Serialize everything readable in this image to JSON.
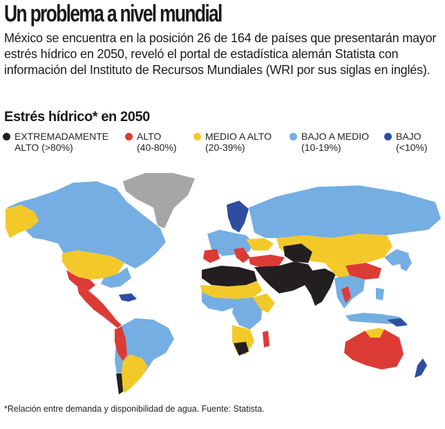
{
  "headline": "Un problema a nivel mundial",
  "lede": "México se encuentra en la posición 26 de 164 de países que presentarán mayor estrés hídrico en 2050, reveló el portal de estadística alemán Statista con información del Instituto de Recursos Mundiales (WRI por sus siglas en inglés).",
  "map_title": "Estrés hídrico* en 2050",
  "legend": [
    {
      "label_1": "EXTREMADAMENTE",
      "label_2": "ALTO (>80%)",
      "color": "#231f20"
    },
    {
      "label_1": "ALTO",
      "label_2": "(40-80%)",
      "color": "#dc3b35"
    },
    {
      "label_1": "MEDIO A ALTO",
      "label_2": "(20-39%)",
      "color": "#f3c92a"
    },
    {
      "label_1": "BAJO A MEDIO",
      "label_2": "(10-19%)",
      "color": "#75aee2"
    },
    {
      "label_1": "BAJO",
      "label_2": "(<10%)",
      "color": "#2f4da0"
    }
  ],
  "no_data_color": "#a6a6a6",
  "footnote": "*Relación entre demanda y disponibilidad de agua. Fuente: Statista."
}
